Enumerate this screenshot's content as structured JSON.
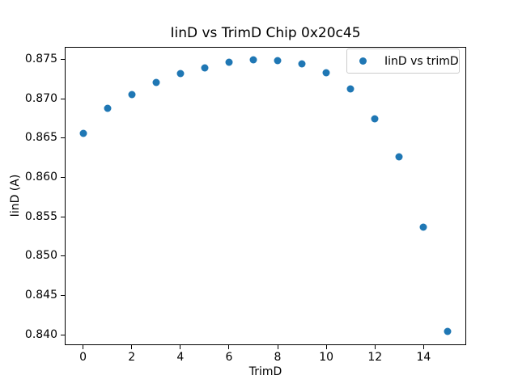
{
  "figure": {
    "background": "#ffffff",
    "text_color": "#000000",
    "spine_color": "#000000",
    "legend_border_color": "#cccccc"
  },
  "chart_data": {
    "type": "scatter",
    "title": "IinD vs TrimD Chip 0x20c45",
    "xlabel": "TrimD",
    "ylabel": "IinD (A)",
    "grid": false,
    "xlim": [
      -0.75,
      15.75
    ],
    "ylim": [
      0.83868,
      0.87663
    ],
    "xticks": [
      {
        "value": 0,
        "label": "0"
      },
      {
        "value": 2,
        "label": "2"
      },
      {
        "value": 4,
        "label": "4"
      },
      {
        "value": 6,
        "label": "6"
      },
      {
        "value": 8,
        "label": "8"
      },
      {
        "value": 10,
        "label": "10"
      },
      {
        "value": 12,
        "label": "12"
      },
      {
        "value": 14,
        "label": "14"
      }
    ],
    "yticks": [
      {
        "value": 0.84,
        "label": "0.840"
      },
      {
        "value": 0.845,
        "label": "0.845"
      },
      {
        "value": 0.85,
        "label": "0.850"
      },
      {
        "value": 0.855,
        "label": "0.855"
      },
      {
        "value": 0.86,
        "label": "0.860"
      },
      {
        "value": 0.865,
        "label": "0.865"
      },
      {
        "value": 0.87,
        "label": "0.870"
      },
      {
        "value": 0.875,
        "label": "0.875"
      }
    ],
    "series": [
      {
        "name": "IinD vs trimD",
        "marker_color": "#1f77b4",
        "x": [
          0,
          1,
          2,
          3,
          4,
          5,
          6,
          7,
          8,
          9,
          10,
          11,
          12,
          13,
          14,
          15
        ],
        "y": [
          0.8656,
          0.8688,
          0.8705,
          0.8721,
          0.8732,
          0.8739,
          0.8746,
          0.8749,
          0.8748,
          0.8744,
          0.8733,
          0.8713,
          0.8675,
          0.8626,
          0.8537,
          0.8404
        ]
      }
    ],
    "legend": {
      "position": "upper right",
      "entries": [
        {
          "label": "IinD vs trimD",
          "marker_color": "#1f77b4"
        }
      ]
    }
  }
}
